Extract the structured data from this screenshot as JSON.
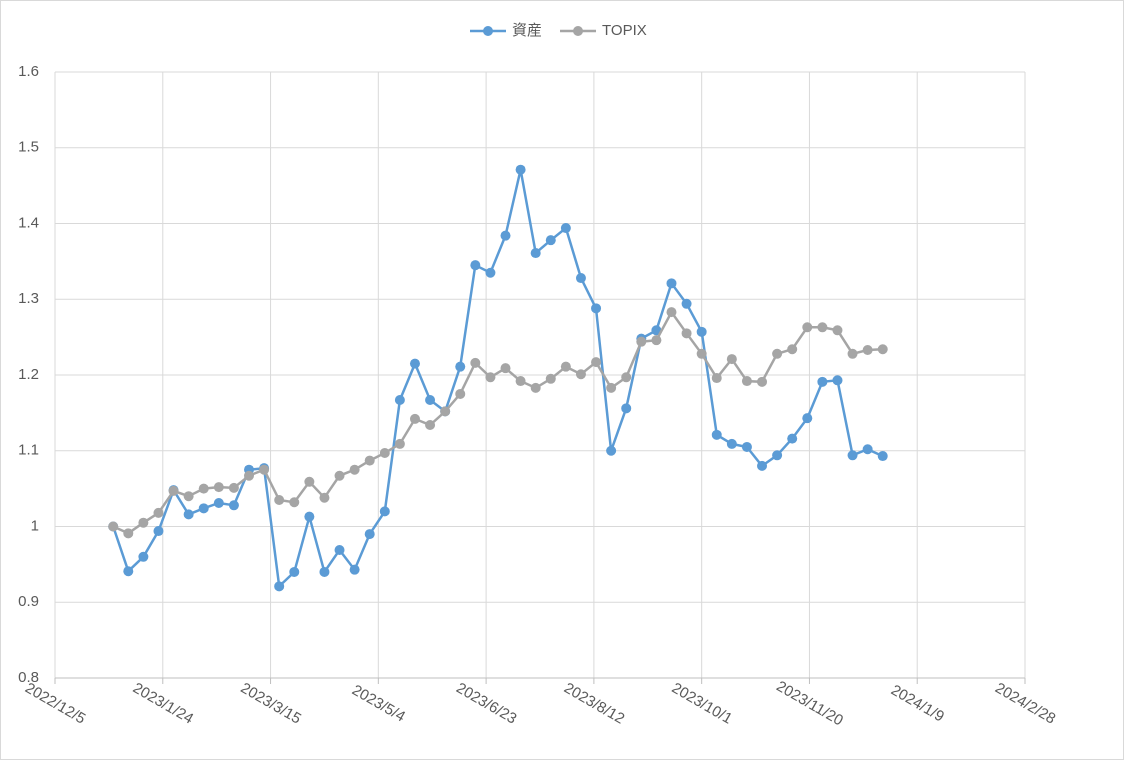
{
  "chart_data": {
    "type": "line",
    "x": [
      "2023/1/1",
      "2023/1/8",
      "2023/1/15",
      "2023/1/22",
      "2023/1/29",
      "2023/2/5",
      "2023/2/12",
      "2023/2/19",
      "2023/2/26",
      "2023/3/5",
      "2023/3/12",
      "2023/3/19",
      "2023/3/26",
      "2023/4/2",
      "2023/4/9",
      "2023/4/16",
      "2023/4/23",
      "2023/4/30",
      "2023/5/7",
      "2023/5/14",
      "2023/5/21",
      "2023/5/28",
      "2023/6/4",
      "2023/6/11",
      "2023/6/18",
      "2023/6/25",
      "2023/7/2",
      "2023/7/9",
      "2023/7/16",
      "2023/7/23",
      "2023/7/30",
      "2023/8/6",
      "2023/8/13",
      "2023/8/20",
      "2023/8/27",
      "2023/9/3",
      "2023/9/10",
      "2023/9/17",
      "2023/9/24",
      "2023/10/1",
      "2023/10/8",
      "2023/10/15",
      "2023/10/22",
      "2023/10/29",
      "2023/11/5",
      "2023/11/12",
      "2023/11/19",
      "2023/11/26",
      "2023/12/3",
      "2023/12/10",
      "2023/12/17",
      "2023/12/24"
    ],
    "series": [
      {
        "name": "資産",
        "color": "#5b9bd5",
        "values": [
          1.0,
          0.941,
          0.96,
          0.994,
          1.048,
          1.016,
          1.024,
          1.031,
          1.028,
          1.075,
          1.077,
          0.921,
          0.94,
          1.013,
          0.94,
          0.969,
          0.943,
          0.99,
          1.02,
          1.167,
          1.215,
          1.167,
          1.152,
          1.211,
          1.345,
          1.335,
          1.384,
          1.471,
          1.361,
          1.378,
          1.394,
          1.328,
          1.288,
          1.1,
          1.156,
          1.248,
          1.259,
          1.321,
          1.294,
          1.257,
          1.121,
          1.109,
          1.105,
          1.08,
          1.094,
          1.116,
          1.143,
          1.191,
          1.193,
          1.094,
          1.102,
          1.093
        ]
      },
      {
        "name": "TOPIX",
        "color": "#a5a5a5",
        "values": [
          1.0,
          0.991,
          1.005,
          1.018,
          1.047,
          1.04,
          1.05,
          1.052,
          1.051,
          1.067,
          1.075,
          1.035,
          1.032,
          1.059,
          1.038,
          1.067,
          1.075,
          1.087,
          1.097,
          1.109,
          1.142,
          1.134,
          1.152,
          1.175,
          1.216,
          1.197,
          1.209,
          1.192,
          1.183,
          1.195,
          1.211,
          1.201,
          1.217,
          1.183,
          1.197,
          1.244,
          1.246,
          1.283,
          1.255,
          1.228,
          1.196,
          1.221,
          1.192,
          1.191,
          1.228,
          1.234,
          1.263,
          1.263,
          1.259,
          1.228,
          1.233,
          1.234
        ]
      }
    ],
    "xlim": [
      "2022/12/5",
      "2024/2/28"
    ],
    "xticks": [
      "2022/12/5",
      "2023/1/24",
      "2023/3/15",
      "2023/5/4",
      "2023/6/23",
      "2023/8/12",
      "2023/10/1",
      "2023/11/20",
      "2024/1/9",
      "2024/2/28"
    ],
    "ylim": [
      0.8,
      1.6
    ],
    "yticks": [
      0.8,
      0.9,
      1,
      1.1,
      1.2,
      1.3,
      1.4,
      1.5,
      1.6
    ],
    "grid": true,
    "legend": "top"
  }
}
